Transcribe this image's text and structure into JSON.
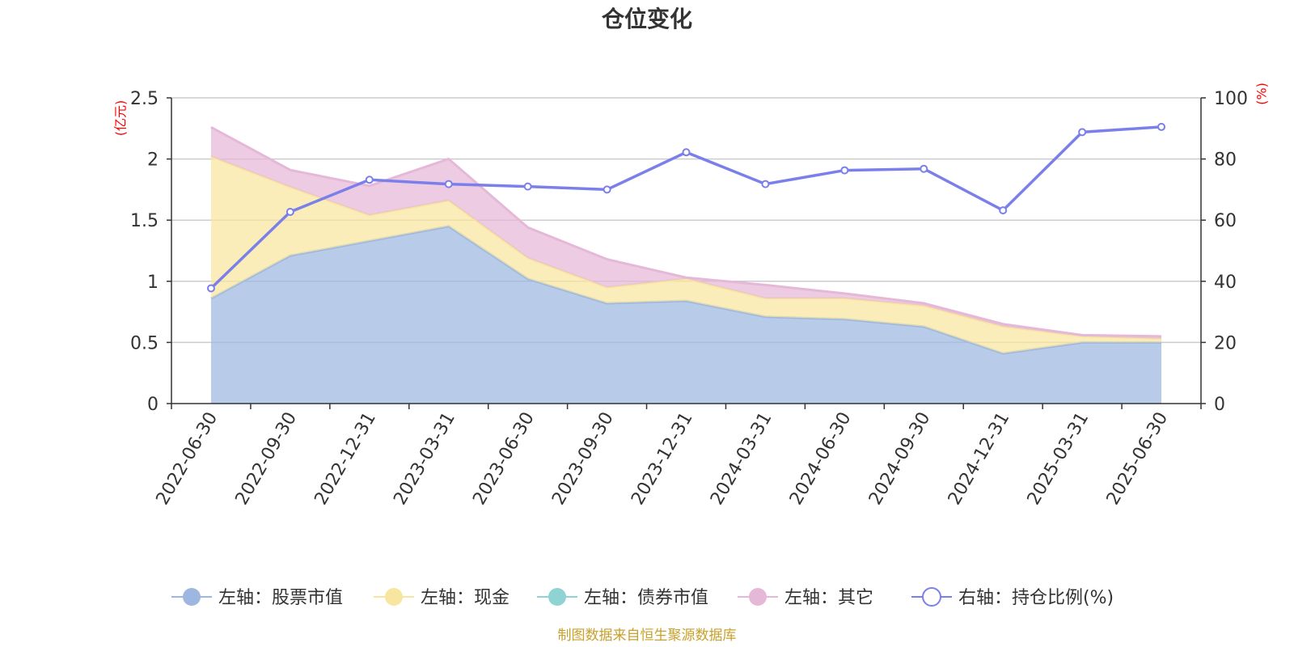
{
  "chart_data": {
    "type": "area",
    "title": "仓位变化",
    "source": "制图数据来自恒生聚源数据库",
    "left_axis": {
      "unit": "(亿元)",
      "min": 0,
      "max": 2.5,
      "ticks": [
        "0",
        "0.5",
        "1",
        "1.5",
        "2",
        "2.5"
      ]
    },
    "right_axis": {
      "unit": "(%)",
      "min": 0,
      "max": 100,
      "ticks": [
        "0",
        "20",
        "40",
        "60",
        "80",
        "100"
      ]
    },
    "grid": true,
    "legend_position": "bottom",
    "categories": [
      "2022-06-30",
      "2022-09-30",
      "2022-12-31",
      "2023-03-31",
      "2023-06-30",
      "2023-09-30",
      "2023-12-31",
      "2024-03-31",
      "2024-06-30",
      "2024-09-30",
      "2024-12-31",
      "2025-03-31",
      "2025-06-30"
    ],
    "series": [
      {
        "name": "左轴：股票市值",
        "axis": "left",
        "stack": true,
        "color": "#9db7e0",
        "values": [
          0.86,
          1.21,
          1.33,
          1.45,
          1.02,
          0.82,
          0.84,
          0.71,
          0.69,
          0.63,
          0.41,
          0.5,
          0.5
        ]
      },
      {
        "name": "左轴：现金",
        "axis": "left",
        "stack": true,
        "color": "#f8e6a0",
        "values": [
          1.16,
          0.56,
          0.21,
          0.21,
          0.17,
          0.13,
          0.18,
          0.15,
          0.17,
          0.17,
          0.22,
          0.05,
          0.03
        ]
      },
      {
        "name": "左轴：债券市值",
        "axis": "left",
        "stack": true,
        "color": "#8fd3d2",
        "values": [
          0,
          0,
          0,
          0,
          0,
          0,
          0,
          0,
          0,
          0,
          0,
          0,
          0
        ]
      },
      {
        "name": "左轴：其它",
        "axis": "left",
        "stack": true,
        "color": "#e6b8d8",
        "values": [
          0.24,
          0.14,
          0.24,
          0.34,
          0.25,
          0.23,
          0.01,
          0.11,
          0.04,
          0.02,
          0.02,
          0.01,
          0.02
        ]
      },
      {
        "name": "右轴：持仓比例(%)",
        "axis": "right",
        "stack": false,
        "color": "#7b7fea",
        "values": [
          37.7,
          62.7,
          73.2,
          71.8,
          71.0,
          70.0,
          82.2,
          71.8,
          76.3,
          76.8,
          63.2,
          88.8,
          90.5
        ]
      }
    ]
  }
}
